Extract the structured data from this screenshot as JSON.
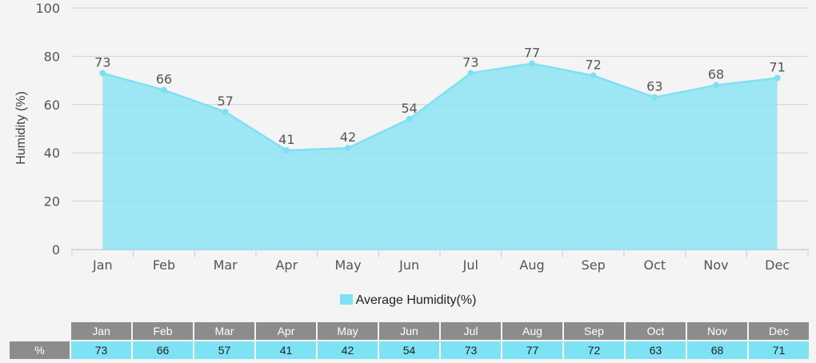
{
  "chart_data": {
    "type": "area",
    "categories": [
      "Jan",
      "Feb",
      "Mar",
      "Apr",
      "May",
      "Jun",
      "Jul",
      "Aug",
      "Sep",
      "Oct",
      "Nov",
      "Dec"
    ],
    "series": [
      {
        "name": "Average Humidity(%)",
        "values": [
          73,
          66,
          57,
          41,
          42,
          54,
          73,
          77,
          72,
          63,
          68,
          71
        ]
      }
    ],
    "ylabel": "Humidity (%)",
    "xlabel": "",
    "ylim": [
      0,
      100
    ],
    "yticks": [
      0,
      20,
      40,
      60,
      80,
      100
    ],
    "grid": true,
    "legend_position": "bottom",
    "colors": {
      "area_fill": "#8de4f3",
      "line": "#7fe0f2",
      "grid": "#cfcfcf",
      "table_header": "#8c8c8c",
      "table_cell": "#7de3f4"
    }
  },
  "legend": {
    "label": "Average Humidity(%)"
  },
  "table": {
    "row_label": "%",
    "headers": [
      "Jan",
      "Feb",
      "Mar",
      "Apr",
      "May",
      "Jun",
      "Jul",
      "Aug",
      "Sep",
      "Oct",
      "Nov",
      "Dec"
    ],
    "values": [
      "73",
      "66",
      "57",
      "41",
      "42",
      "54",
      "73",
      "77",
      "72",
      "63",
      "68",
      "71"
    ]
  }
}
